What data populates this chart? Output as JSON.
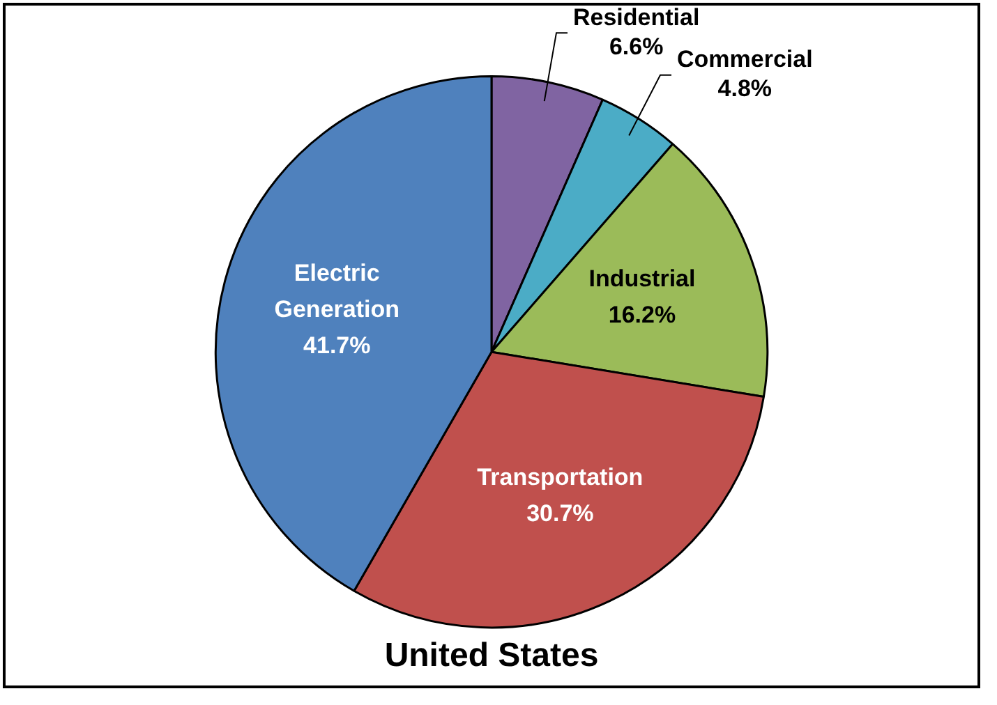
{
  "chart_data": {
    "type": "pie",
    "title": "United States",
    "categories": [
      "Residential",
      "Commercial",
      "Industrial",
      "Transportation",
      "Electric Generation"
    ],
    "values": [
      6.6,
      4.8,
      16.2,
      30.7,
      41.7
    ],
    "value_labels": [
      "6.6%",
      "4.8%",
      "16.2%",
      "30.7%",
      "41.7%"
    ],
    "colors": [
      "#8064a2",
      "#4bacc6",
      "#9bbb59",
      "#c0504d",
      "#4f81bd"
    ],
    "legend": false
  }
}
